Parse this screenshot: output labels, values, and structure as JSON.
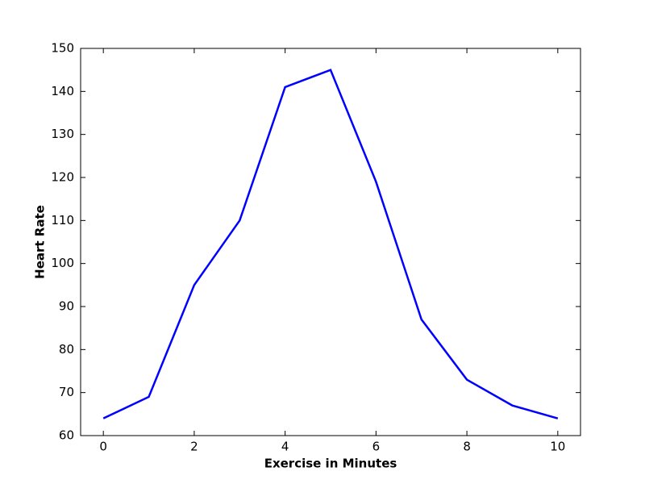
{
  "chart_data": {
    "type": "line",
    "xlabel": "Exercise in Minutes",
    "ylabel": "Heart Rate",
    "x": [
      0,
      1,
      2,
      3,
      4,
      5,
      6,
      7,
      8,
      9,
      10
    ],
    "series": [
      {
        "color": "#0000ff",
        "values": [
          64,
          69,
          95,
          110,
          141,
          145,
          119,
          87,
          73,
          67,
          64
        ]
      }
    ],
    "xlim": [
      -0.5,
      10.5
    ],
    "xticks": [
      0,
      2,
      4,
      6,
      8,
      10
    ],
    "ylim": [
      60,
      150
    ],
    "yticks": [
      60,
      70,
      80,
      90,
      100,
      110,
      120,
      130,
      140,
      150
    ],
    "grid": false
  }
}
